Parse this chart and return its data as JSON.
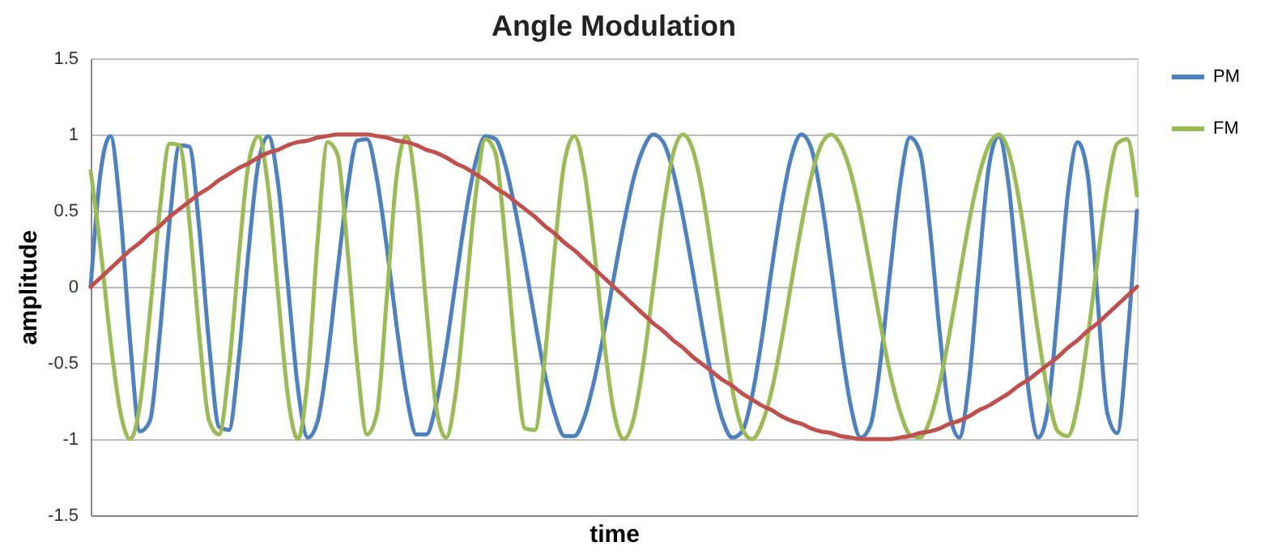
{
  "chart_data": {
    "type": "line",
    "title": "Angle Modulation",
    "xlabel": "time",
    "ylabel": "amplitude",
    "categories": [
      null,
      null,
      null,
      null,
      null,
      null,
      null,
      null,
      null,
      null,
      null,
      null,
      null,
      null,
      null,
      null,
      null,
      null,
      null,
      null,
      null,
      null,
      null,
      null,
      null,
      null,
      null,
      null,
      null,
      null,
      null,
      null,
      null,
      null,
      null,
      null,
      null,
      null,
      null,
      null,
      null,
      null,
      null,
      null,
      null,
      null,
      null,
      null,
      null,
      null,
      null,
      null,
      null,
      null,
      null,
      null,
      null,
      null,
      null,
      null,
      null,
      null,
      null,
      null,
      null,
      null,
      null,
      null,
      null,
      null,
      null,
      null,
      null,
      null,
      null,
      null,
      null,
      null,
      null,
      null,
      null,
      null,
      null,
      null,
      null,
      null,
      null,
      null,
      null,
      null,
      null,
      null,
      null,
      null,
      null,
      null,
      null,
      null,
      null,
      null,
      null,
      null,
      null,
      null,
      null,
      null,
      null
    ],
    "series": [
      {
        "name": "PM",
        "color": "#4f81bd",
        "values": [
          0,
          0.75,
          0.99,
          0.5,
          -0.36,
          -0.95,
          -0.88,
          -0.31,
          0.43,
          0.93,
          0.92,
          0.38,
          -0.38,
          -0.92,
          -0.94,
          -0.47,
          0.24,
          0.82,
          0.99,
          0.67,
          0,
          -0.67,
          -0.99,
          -0.88,
          -0.47,
          0.1,
          0.63,
          0.96,
          0.97,
          0.71,
          0.26,
          -0.26,
          -0.71,
          -0.97,
          -0.97,
          -0.77,
          -0.41,
          0.04,
          0.48,
          0.82,
          0.99,
          0.97,
          0.8,
          0.51,
          0.16,
          -0.22,
          -0.57,
          -0.83,
          -0.98,
          -0.98,
          -0.86,
          -0.62,
          -0.3,
          0.06,
          0.41,
          0.71,
          0.91,
          1,
          0.95,
          0.76,
          0.46,
          0.1,
          -0.28,
          -0.62,
          -0.87,
          -0.99,
          -0.95,
          -0.72,
          -0.34,
          0.12,
          0.54,
          0.86,
          1,
          0.91,
          0.59,
          0.13,
          -0.37,
          -0.78,
          -0.99,
          -0.91,
          -0.5,
          0.1,
          0.67,
          0.98,
          0.89,
          0.4,
          -0.29,
          -0.83,
          -0.99,
          -0.61,
          0.13,
          0.79,
          0.99,
          0.67,
          0,
          -0.67,
          -0.99,
          -0.79,
          -0.13,
          0.61,
          0.95,
          0.74,
          -0.07,
          -0.83,
          -0.96,
          -0.37,
          0.5
        ]
      },
      {
        "name": "FM",
        "color": "#9bbb59",
        "values": [
          0.76,
          0.25,
          -0.35,
          -0.82,
          -1,
          -0.77,
          -0.17,
          0.5,
          0.94,
          0.93,
          0.43,
          -0.31,
          -0.88,
          -0.97,
          -0.54,
          0.19,
          0.81,
          0.99,
          0.64,
          -0.06,
          -0.73,
          -1,
          -0.59,
          0.31,
          0.95,
          0.87,
          0.26,
          -0.5,
          -0.97,
          -0.83,
          -0.07,
          0.73,
          0.99,
          0.61,
          -0.13,
          -0.79,
          -0.99,
          -0.69,
          -0.06,
          0.6,
          0.97,
          0.88,
          0.31,
          -0.43,
          -0.93,
          -0.94,
          -0.47,
          0.24,
          0.82,
          0.99,
          0.76,
          0.25,
          -0.35,
          -0.82,
          -1,
          -0.87,
          -0.5,
          0,
          0.5,
          0.87,
          1,
          0.9,
          0.61,
          0.19,
          -0.26,
          -0.67,
          -0.93,
          -1,
          -0.9,
          -0.68,
          -0.35,
          0.03,
          0.4,
          0.72,
          0.93,
          1,
          0.93,
          0.75,
          0.47,
          0.12,
          -0.24,
          -0.57,
          -0.82,
          -0.97,
          -0.99,
          -0.88,
          -0.64,
          -0.31,
          0.06,
          0.43,
          0.73,
          0.93,
          1,
          0.89,
          0.59,
          0.16,
          -0.31,
          -0.71,
          -0.95,
          -0.98,
          -0.77,
          -0.34,
          0.17,
          0.64,
          0.94,
          0.97,
          0.6
        ]
      },
      {
        "color": "#c0504d",
        "values": [
          0,
          0.06,
          0.12,
          0.18,
          0.24,
          0.29,
          0.35,
          0.4,
          0.46,
          0.51,
          0.56,
          0.61,
          0.65,
          0.7,
          0.74,
          0.78,
          0.81,
          0.85,
          0.88,
          0.9,
          0.93,
          0.95,
          0.96,
          0.98,
          0.99,
          1,
          1,
          1,
          1,
          0.99,
          0.98,
          0.96,
          0.95,
          0.93,
          0.9,
          0.88,
          0.85,
          0.81,
          0.78,
          0.74,
          0.7,
          0.65,
          0.61,
          0.56,
          0.51,
          0.46,
          0.4,
          0.35,
          0.29,
          0.24,
          0.18,
          0.12,
          0.06,
          0,
          -0.06,
          -0.12,
          -0.18,
          -0.24,
          -0.29,
          -0.35,
          -0.4,
          -0.46,
          -0.51,
          -0.56,
          -0.61,
          -0.65,
          -0.7,
          -0.74,
          -0.78,
          -0.81,
          -0.85,
          -0.88,
          -0.9,
          -0.93,
          -0.95,
          -0.96,
          -0.98,
          -0.99,
          -1,
          -1,
          -1,
          -1,
          -0.99,
          -0.98,
          -0.96,
          -0.95,
          -0.93,
          -0.9,
          -0.88,
          -0.85,
          -0.81,
          -0.78,
          -0.74,
          -0.7,
          -0.65,
          -0.61,
          -0.56,
          -0.51,
          -0.46,
          -0.4,
          -0.35,
          -0.29,
          -0.24,
          -0.18,
          -0.12,
          -0.06,
          0
        ]
      }
    ],
    "ylim": [
      -1.5,
      1.5
    ],
    "yticks": [
      -1.5,
      -1,
      -0.5,
      0,
      0.5,
      1,
      1.5
    ],
    "grid": "y",
    "legend": "right",
    "tick_labels": "y",
    "marker": "none",
    "line_style": "solid"
  }
}
